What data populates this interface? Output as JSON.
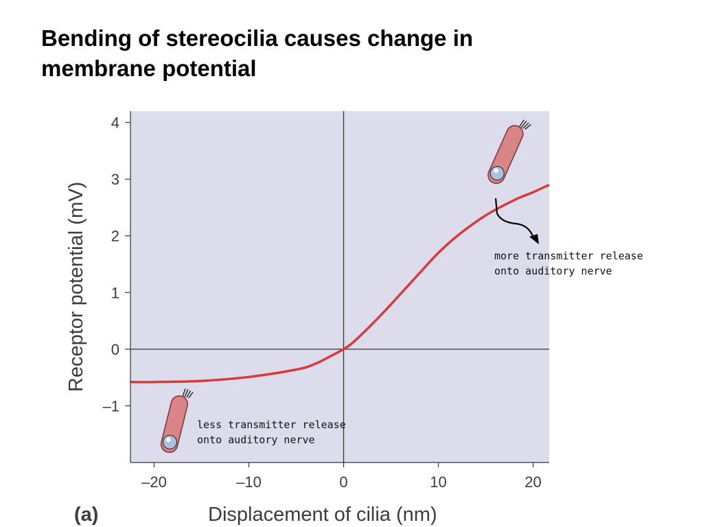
{
  "title": {
    "line1": "Bending of stereocilia causes change in",
    "line2": "membrane potential"
  },
  "chart_data": {
    "type": "line",
    "panel_label": "(a)",
    "xlabel": "Displacement of cilia (nm)",
    "ylabel": "Receptor potential (mV)",
    "xlim": [
      -22.5,
      21.7
    ],
    "ylim": [
      -2.0,
      4.2
    ],
    "x_ticks": [
      -20,
      -10,
      0,
      10,
      20
    ],
    "x_tick_labels": [
      "–20",
      "–10",
      "0",
      "10",
      "20"
    ],
    "y_ticks": [
      4,
      3,
      2,
      1,
      0,
      -1
    ],
    "y_tick_labels": [
      "4",
      "3",
      "2",
      "1",
      "0",
      "–1"
    ],
    "grid": false,
    "reference_lines": {
      "x": 0,
      "y": 0
    },
    "colors": {
      "plot_background": "#dcdcec",
      "curve": "#d83a38",
      "hair_cell_fill": "#d98588",
      "hair_cell_outline": "#7a3b40",
      "nucleus": "#aebfe0"
    },
    "series": [
      {
        "x": [
          -22.5,
          -20,
          -15,
          -10,
          -5,
          -3,
          -1,
          0,
          1,
          3,
          5,
          8,
          10,
          12,
          15,
          18,
          20,
          21.7
        ],
        "y": [
          -0.58,
          -0.58,
          -0.56,
          -0.49,
          -0.36,
          -0.26,
          -0.09,
          0.0,
          0.12,
          0.44,
          0.79,
          1.34,
          1.7,
          2.0,
          2.36,
          2.63,
          2.77,
          2.9
        ]
      }
    ],
    "annotations": [
      {
        "line1": "more transmitter release",
        "line2": "onto auditory nerve",
        "icon": "hair-cell-icon",
        "arrow": "curved-arrow-icon"
      },
      {
        "line1": "less transmitter release",
        "line2": "onto auditory nerve",
        "icon": "hair-cell-icon"
      }
    ]
  }
}
